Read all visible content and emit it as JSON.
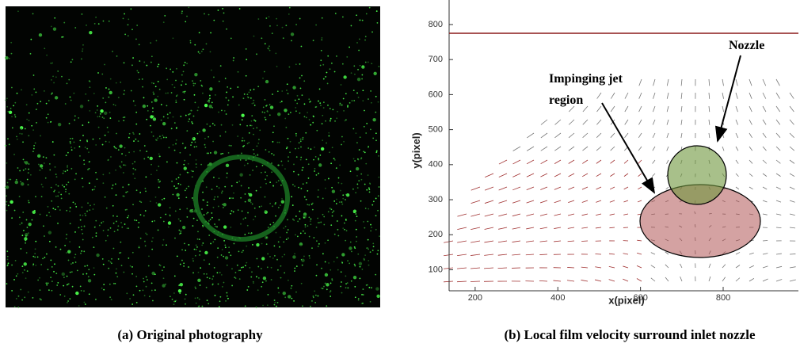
{
  "panel_a": {
    "caption": "(a) Original photography"
  },
  "panel_b": {
    "caption": "(b) Local film velocity surround inlet nozzle",
    "chart_data": {
      "type": "quiver",
      "xlabel": "x(pixel)",
      "ylabel": "y(pixel)",
      "xlim": [
        137,
        982
      ],
      "ylim": [
        40,
        870
      ],
      "xticks": [
        200,
        400,
        600,
        800
      ],
      "yticks": [
        100,
        200,
        300,
        400,
        500,
        600,
        700,
        800
      ],
      "hline": 775,
      "hline_color": "#8b1a1a",
      "annotations": [
        "Nozzle",
        "Impinging jet",
        "region"
      ]
    }
  }
}
